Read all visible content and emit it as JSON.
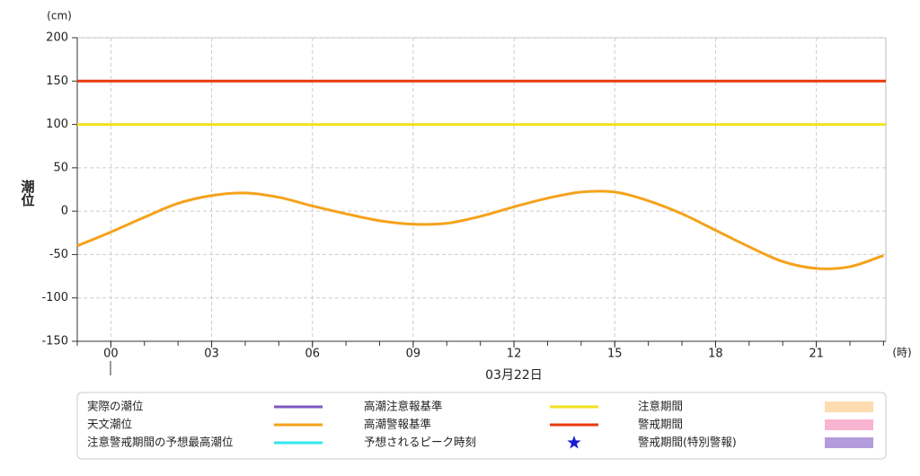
{
  "chart_data": {
    "type": "line",
    "y_label": "潮位",
    "y_unit": "(cm)",
    "x_unit": "(時)",
    "date_label": "03月22日",
    "x": [
      -1,
      0,
      1,
      2,
      3,
      4,
      5,
      6,
      7,
      8,
      9,
      10,
      11,
      12,
      13,
      14,
      15,
      16,
      17,
      18,
      19,
      20,
      21,
      22,
      23
    ],
    "xlim": [
      -1,
      23.07
    ],
    "xticks": [
      {
        "value": 0,
        "label": "00"
      },
      {
        "value": 3,
        "label": "03"
      },
      {
        "value": 6,
        "label": "06"
      },
      {
        "value": 9,
        "label": "09"
      },
      {
        "value": 12,
        "label": "12"
      },
      {
        "value": 15,
        "label": "15"
      },
      {
        "value": 18,
        "label": "18"
      },
      {
        "value": 21,
        "label": "21"
      }
    ],
    "ylim": [
      -150,
      200
    ],
    "yticks": [
      200,
      150,
      100,
      50,
      0,
      -50,
      -100,
      -150
    ],
    "grid": true,
    "series": [
      {
        "name": "天文潮位",
        "color": "#f5a21b",
        "values": [
          -40,
          -24,
          -7,
          9,
          18,
          21,
          16,
          6,
          -3,
          -11,
          -15,
          -14,
          -6,
          5,
          15,
          22,
          22,
          12,
          -3,
          -22,
          -41,
          -58,
          -66,
          -64,
          -51
        ]
      }
    ],
    "reference_lines": [
      {
        "name": "高潮注意報基準",
        "color": "#f0e31e",
        "value": 100
      },
      {
        "name": "高潮警報基準",
        "color": "#e8380d",
        "value": 150
      }
    ],
    "legend_extra": [
      {
        "name": "実際の潮位",
        "color": "#7e57c2",
        "symbol": "line"
      },
      {
        "name": "注意警戒期間の予想最高潮位",
        "color": "#33e6f0",
        "symbol": "line"
      },
      {
        "name": "予想されるピーク時刻",
        "color": "#1a1ad6",
        "symbol": "star"
      },
      {
        "name": "注意期間",
        "color": "#fddcb0",
        "symbol": "rect"
      },
      {
        "name": "警戒期間",
        "color": "#f8b4d0",
        "symbol": "rect"
      },
      {
        "name": "警戒期間(特別警報)",
        "color": "#b29cdb",
        "symbol": "rect"
      }
    ]
  }
}
